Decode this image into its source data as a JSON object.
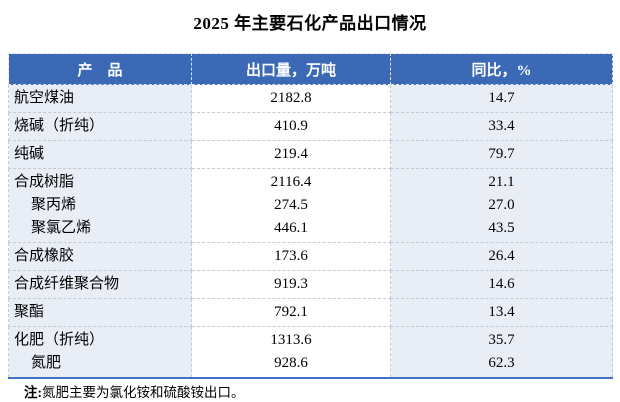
{
  "title": "2025 年主要石化产品出口情况",
  "table": {
    "headers": [
      "产　品",
      "出口量，万吨",
      "同比，%"
    ],
    "header_bg": "#3B69B5",
    "band_bg": "#E9EEF6",
    "bottom_border": "#4472C4",
    "rows": [
      {
        "lines": [
          {
            "product": "航空煤油",
            "volume": "2182.8",
            "yoy": "14.7",
            "sub": false
          }
        ]
      },
      {
        "lines": [
          {
            "product": "烧碱（折纯）",
            "volume": "410.9",
            "yoy": "33.4",
            "sub": false
          }
        ]
      },
      {
        "lines": [
          {
            "product": "纯碱",
            "volume": "219.4",
            "yoy": "79.7",
            "sub": false
          }
        ]
      },
      {
        "lines": [
          {
            "product": "合成树脂",
            "volume": "2116.4",
            "yoy": "21.1",
            "sub": false
          },
          {
            "product": "聚丙烯",
            "volume": "274.5",
            "yoy": "27.0",
            "sub": true
          },
          {
            "product": "聚氯乙烯",
            "volume": "446.1",
            "yoy": "43.5",
            "sub": true
          }
        ]
      },
      {
        "lines": [
          {
            "product": "合成橡胶",
            "volume": "173.6",
            "yoy": "26.4",
            "sub": false
          }
        ]
      },
      {
        "lines": [
          {
            "product": "合成纤维聚合物",
            "volume": "919.3",
            "yoy": "14.6",
            "sub": false
          }
        ]
      },
      {
        "lines": [
          {
            "product": "聚酯",
            "volume": "792.1",
            "yoy": "13.4",
            "sub": false
          }
        ]
      },
      {
        "lines": [
          {
            "product": "化肥（折纯）",
            "volume": "1313.6",
            "yoy": "35.7",
            "sub": false
          },
          {
            "product": "氮肥",
            "volume": "928.6",
            "yoy": "62.3",
            "sub": true
          }
        ]
      }
    ]
  },
  "note": {
    "label": "注:",
    "text": "氮肥主要为氯化铵和硫酸铵出口。"
  }
}
